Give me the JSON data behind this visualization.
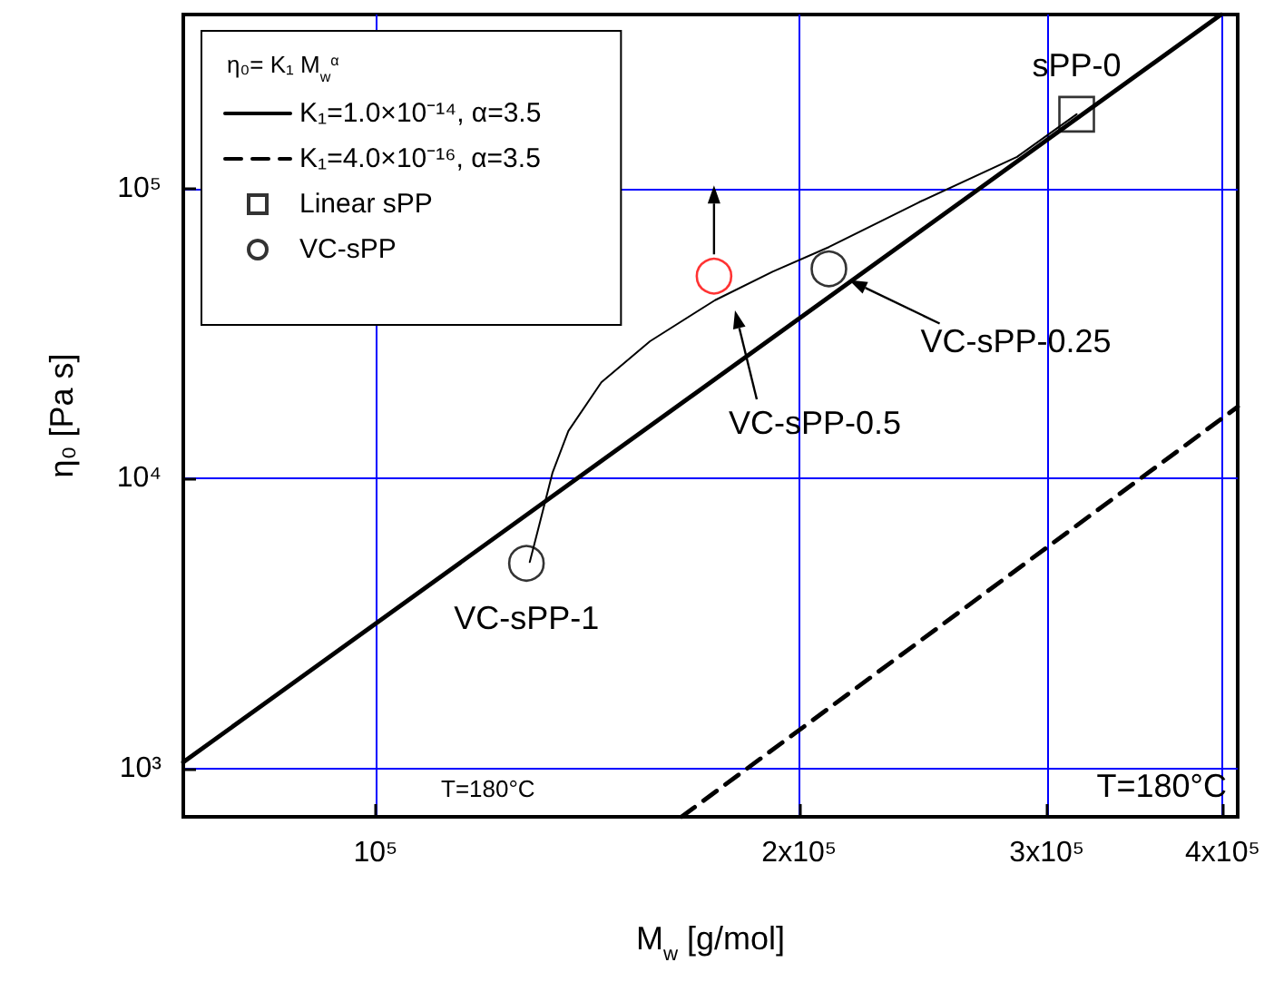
{
  "chart_data": {
    "type": "line",
    "xlabel": "M$_{w}$ [g/mol]",
    "ylabel": "η₀ [Pa s]",
    "legend_title": "η₀= K₁ M$_{w}$$^{α}$",
    "log": "xy",
    "grid": true,
    "legend": "top left",
    "xlim": [
      73000,
      410000
    ],
    "ylim": [
      680,
      400000
    ],
    "xticks": [
      {
        "value": 100000,
        "label": "10⁵"
      },
      {
        "value": 200000,
        "label": "2x10⁵"
      },
      {
        "value": 300000,
        "label": "3x10⁵"
      },
      {
        "value": 400000,
        "label": "4x10⁵"
      }
    ],
    "yticks": [
      {
        "value": 1000,
        "label": "10³"
      },
      {
        "value": 10000,
        "label": "10⁴"
      },
      {
        "value": 100000,
        "label": "10⁵"
      }
    ],
    "series": [
      {
        "name": "K₁=1.0×10⁻¹⁴, α=3.5",
        "color": "#000000",
        "line_style": "solid",
        "marker": "none",
        "x": [
          73000,
          399000
        ],
        "values": [
          1050,
          400000
        ]
      },
      {
        "name": "K₁=4.0×10⁻¹⁶, α=3.5",
        "color": "#000000",
        "line_style": "dashed",
        "marker": "none",
        "x": [
          165000,
          410000
        ],
        "values": [
          680,
          17700
        ]
      },
      {
        "name": "Linear sPP",
        "type": "scatter",
        "color": "#000000",
        "marker": "square",
        "x": [
          315000
        ],
        "values": [
          181000
        ]
      },
      {
        "name": "VC-sPP",
        "type": "scatter",
        "color": "#000000",
        "colors": [
          "#000000",
          "#ff0000",
          "#000000"
        ],
        "marker": "circle",
        "x": [
          128000,
          174000,
          210000
        ],
        "values": [
          5100,
          50000,
          53000
        ]
      },
      {
        "color": "#000000",
        "line_style": "solid",
        "marker": "none",
        "x": [
          128700,
          130900,
          133600,
          137100,
          144700,
          156700,
          174300,
          191500,
          210000,
          243400,
          285700,
          315000
        ],
        "values": [
          5150,
          7100,
          10500,
          14600,
          21500,
          29800,
          41300,
          51800,
          63000,
          90000,
          129000,
          181000
        ]
      }
    ],
    "annotations": [
      {
        "text": "sPP-0",
        "x": 315000,
        "y": 181000
      },
      {
        "text": "VC-sPP-1",
        "x": 128000,
        "y": 5100
      },
      "VC-sPP-0.5",
      {
        "text": "VC-sPP-0.25",
        "x": 217000,
        "y": 48500
      },
      "T=180°C",
      "T=180°C"
    ]
  }
}
